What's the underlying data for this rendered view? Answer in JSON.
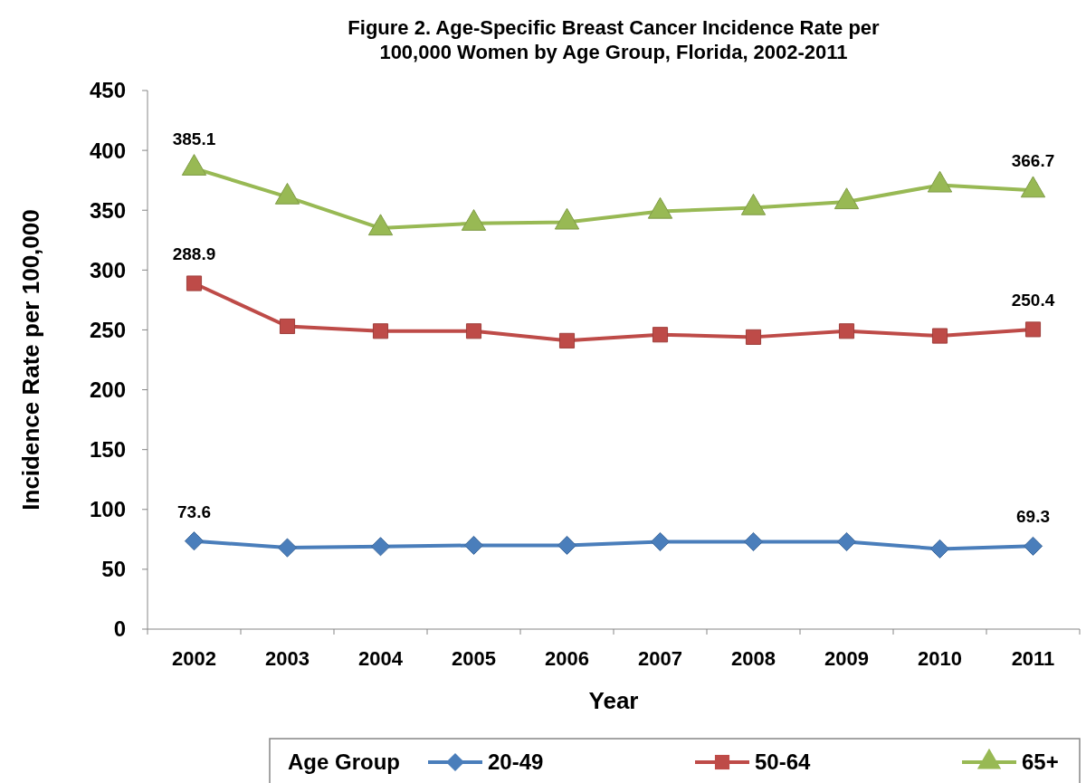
{
  "chart_data": {
    "type": "line",
    "title": "Figure 2. Age-Specific Breast Cancer Incidence Rate per\n100,000 Women by Age Group, Florida, 2002-2011",
    "xlabel": "Year",
    "ylabel": "Incidence Rate per 100,000",
    "legend_title": "Age Group",
    "categories": [
      "2002",
      "2003",
      "2004",
      "2005",
      "2006",
      "2007",
      "2008",
      "2009",
      "2010",
      "2011"
    ],
    "series": [
      {
        "name": "20-49",
        "color": "#4a7ebb",
        "marker": "diamond",
        "values": [
          73.6,
          68,
          69,
          70,
          70,
          73,
          73,
          73,
          67,
          69.3
        ],
        "value_labels": [
          "73.6",
          null,
          null,
          null,
          null,
          null,
          null,
          null,
          null,
          "69.3"
        ]
      },
      {
        "name": "50-64",
        "color": "#be4b48",
        "marker": "square",
        "values": [
          288.9,
          253,
          249,
          249,
          241,
          246,
          244,
          249,
          245,
          250.4
        ],
        "value_labels": [
          "288.9",
          null,
          null,
          null,
          null,
          null,
          null,
          null,
          null,
          "250.4"
        ]
      },
      {
        "name": "65+",
        "color": "#98b954",
        "marker": "triangle",
        "values": [
          385.1,
          361,
          335,
          339,
          340,
          349,
          352,
          357,
          371,
          366.7
        ],
        "value_labels": [
          "385.1",
          null,
          null,
          null,
          null,
          null,
          null,
          null,
          null,
          "366.7"
        ]
      }
    ],
    "ylim": [
      0,
      450
    ],
    "yticks": [
      0,
      50,
      100,
      150,
      200,
      250,
      300,
      350,
      400,
      450
    ],
    "grid": false,
    "legend": "bottom",
    "line_style": "solid"
  }
}
